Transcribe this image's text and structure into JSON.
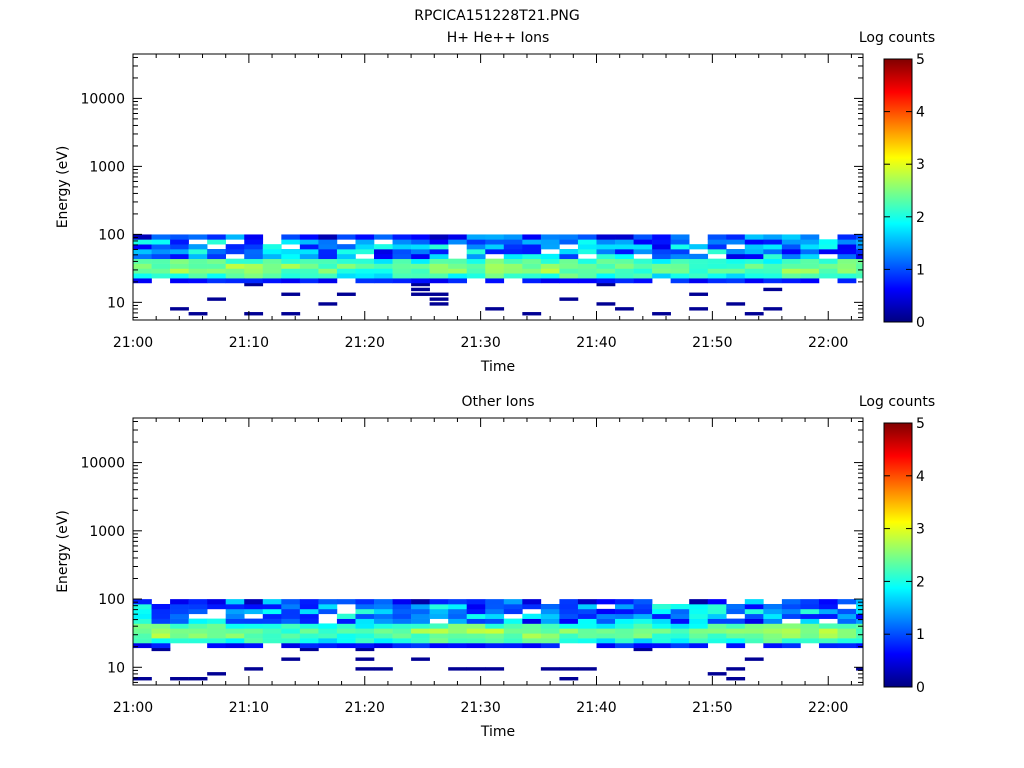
{
  "figure": {
    "title": "RPCICA151228T21.PNG"
  },
  "colorscale": {
    "stops": [
      "#000080",
      "#0000ff",
      "#0080ff",
      "#00ffff",
      "#80ff80",
      "#ffff00",
      "#ff8000",
      "#ff0000",
      "#800000"
    ]
  },
  "chart_data": [
    {
      "type": "heatmap",
      "title": "H+ He++ Ions",
      "xlabel": "Time",
      "ylabel": "Energy (eV)",
      "xlim": [
        "21:00",
        "22:03"
      ],
      "xticks": [
        "21:00",
        "21:10",
        "21:20",
        "21:30",
        "21:40",
        "21:50",
        "22:00"
      ],
      "yscale": "log",
      "ylim": [
        5.5,
        45000
      ],
      "yticks": [
        10,
        100,
        1000,
        10000
      ],
      "yticklabels": [
        "10",
        "100",
        "1000",
        "10000"
      ],
      "colorbar": {
        "label": "Log counts",
        "range": [
          0,
          5
        ],
        "ticks": [
          "0",
          "1",
          "2",
          "3",
          "4",
          "5"
        ]
      },
      "cells": {
        "time_step_min": 1.6,
        "energy_bins_eV": [
          6.1,
          7.2,
          8.5,
          10.0,
          11.8,
          13.9,
          16.4,
          19.3,
          22.7,
          26.8,
          31.5,
          37.2,
          43.8,
          51.6,
          60.8,
          71.7,
          84.5
        ],
        "description": "log counts per time/energy cell",
        "core_band_eV": [
          22,
          37
        ],
        "core_peak_log_counts": 2.5,
        "upper_band_eV": [
          40,
          95
        ],
        "upper_band_log_counts": [
          0.5,
          2.2
        ],
        "sparse_low_energy_eV": [
          6,
          20
        ],
        "sparse_low_energy_log_counts": 0.1
      }
    },
    {
      "type": "heatmap",
      "title": "Other Ions",
      "xlabel": "Time",
      "ylabel": "Energy (eV)",
      "xlim": [
        "21:00",
        "22:03"
      ],
      "xticks": [
        "21:00",
        "21:10",
        "21:20",
        "21:30",
        "21:40",
        "21:50",
        "22:00"
      ],
      "yscale": "log",
      "ylim": [
        5.5,
        45000
      ],
      "yticks": [
        10,
        100,
        1000,
        10000
      ],
      "yticklabels": [
        "10",
        "100",
        "1000",
        "10000"
      ],
      "colorbar": {
        "label": "Log counts",
        "range": [
          0,
          5
        ],
        "ticks": [
          "0",
          "1",
          "2",
          "3",
          "4",
          "5"
        ]
      },
      "cells": {
        "time_step_min": 1.6,
        "energy_bins_eV": [
          6.1,
          7.2,
          8.5,
          10.0,
          11.8,
          13.9,
          16.4,
          19.3,
          22.7,
          26.8,
          31.5,
          37.2,
          43.8,
          51.6,
          60.8,
          71.7,
          84.5
        ],
        "description": "log counts per time/energy cell",
        "core_band_eV": [
          22,
          37
        ],
        "core_peak_log_counts": 2.5,
        "upper_band_eV": [
          40,
          95
        ],
        "upper_band_log_counts": [
          0.5,
          2.2
        ],
        "sparse_low_energy_eV": [
          6,
          20
        ],
        "sparse_low_energy_log_counts": 0.1
      }
    }
  ]
}
